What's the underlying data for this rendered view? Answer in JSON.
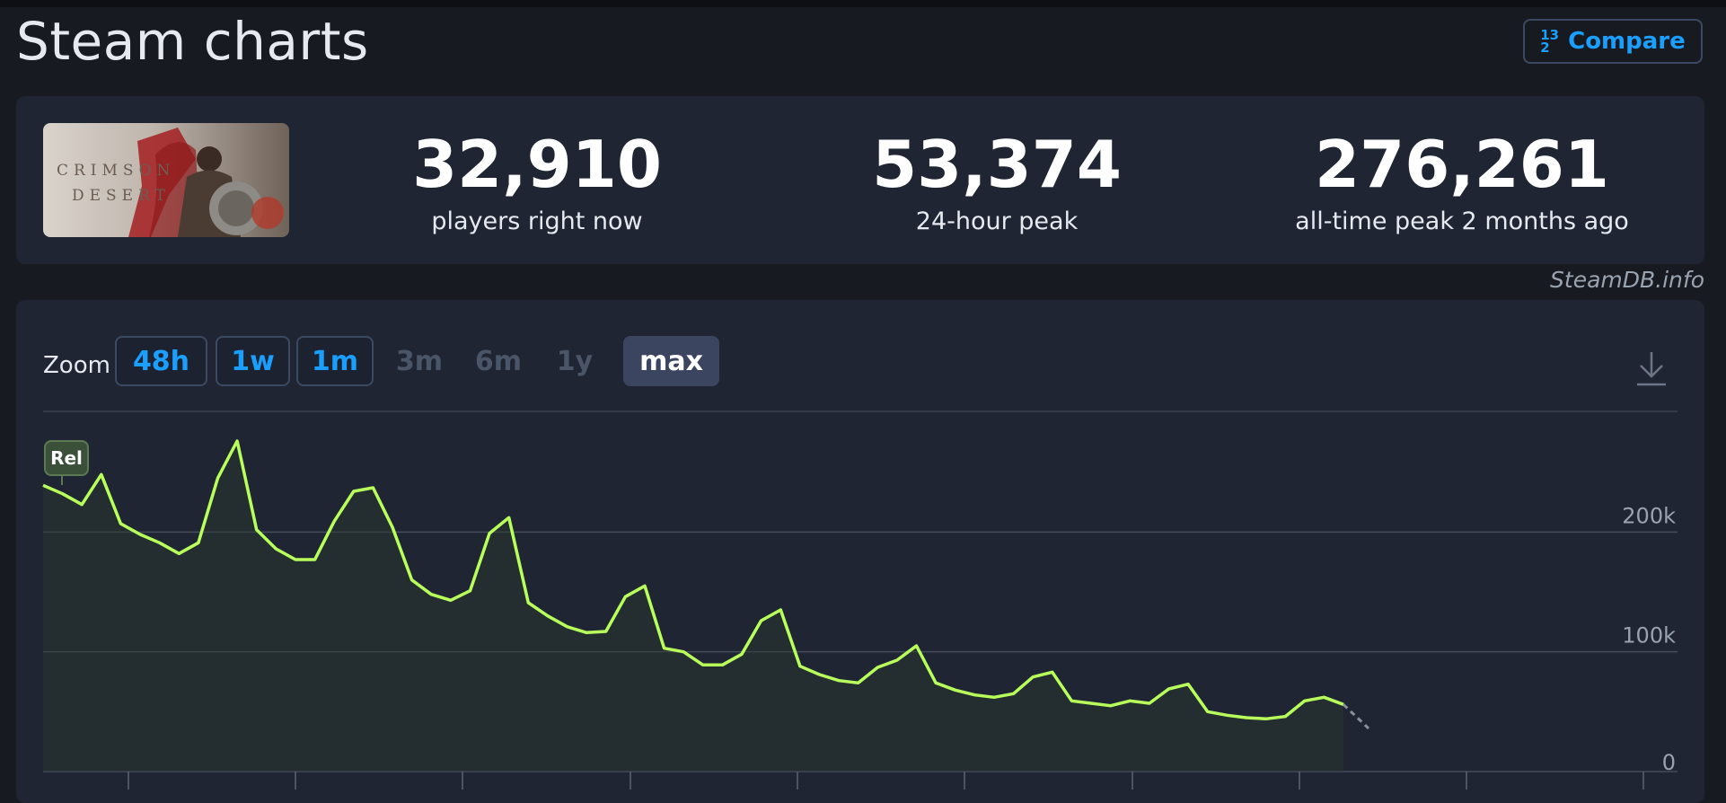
{
  "header": {
    "title": "Steam charts",
    "compare_label": "Compare",
    "compare_icon": "fraction-icon",
    "compare_icon_top": "1",
    "compare_icon_mid": "3",
    "compare_icon_bottom": "2"
  },
  "game": {
    "cover_text_line1": "CRIMSON",
    "cover_text_line2": "DESERT"
  },
  "stats": {
    "now": {
      "value": "32,910",
      "label": "players right now"
    },
    "peak24": {
      "value": "53,374",
      "label": "24-hour peak"
    },
    "alltime": {
      "value": "276,261",
      "label": "all-time peak 2 months ago"
    }
  },
  "watermark": "SteamDB.info",
  "controls": {
    "zoom_label": "Zoom",
    "zoom_options": [
      {
        "label": "48h",
        "state": "enabled"
      },
      {
        "label": "1w",
        "state": "enabled"
      },
      {
        "label": "1m",
        "state": "enabled"
      },
      {
        "label": "3m",
        "state": "disabled"
      },
      {
        "label": "6m",
        "state": "disabled"
      },
      {
        "label": "1y",
        "state": "disabled"
      },
      {
        "label": "max",
        "state": "active"
      }
    ],
    "download_icon": "download-icon"
  },
  "chart_data": {
    "type": "area",
    "title": "",
    "xlabel": "",
    "ylabel": "",
    "ylim": [
      0,
      300000
    ],
    "y_ticks": [
      "0",
      "100k",
      "200k"
    ],
    "y_tick_values": [
      0,
      100000,
      200000
    ],
    "grid": true,
    "marker_label": "Rel",
    "line_color": "#b9ff5c",
    "series": [
      {
        "values": [
          239000,
          232000,
          223000,
          248000,
          207000,
          198000,
          191000,
          182000,
          191000,
          245000,
          276000,
          202000,
          186000,
          177000,
          177000,
          209000,
          234000,
          237000,
          204000,
          160000,
          148000,
          143000,
          151000,
          199000,
          212000,
          141000,
          130000,
          121000,
          116000,
          117000,
          146000,
          155000,
          103000,
          100000,
          89000,
          89000,
          98000,
          126000,
          135000,
          88000,
          81000,
          76000,
          74000,
          87000,
          93000,
          105000,
          74000,
          68000,
          64000,
          62000,
          65000,
          79000,
          83000,
          59000,
          57000,
          55000,
          59000,
          57000,
          69000,
          73000,
          50000,
          47000,
          45000,
          44000,
          46000,
          59000,
          62000,
          56000
        ]
      }
    ],
    "projection_values": [
      56000,
      36000
    ]
  }
}
